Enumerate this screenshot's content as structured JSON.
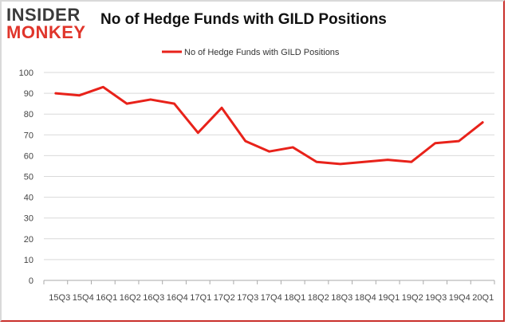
{
  "logo": {
    "line1": "INSIDER",
    "line2": "MONKEY"
  },
  "colors": {
    "series": "#e8221a",
    "grid": "#d9d9d9",
    "axis": "#aaaaaa"
  },
  "chart_data": {
    "type": "line",
    "title": "No of Hedge Funds with GILD Positions",
    "xlabel": "",
    "ylabel": "",
    "ylim": [
      0,
      100
    ],
    "yticks": [
      0,
      10,
      20,
      30,
      40,
      50,
      60,
      70,
      80,
      90,
      100
    ],
    "grid": true,
    "legend_position": "top-center",
    "categories": [
      "15Q3",
      "15Q4",
      "16Q1",
      "16Q2",
      "16Q3",
      "16Q4",
      "17Q1",
      "17Q2",
      "17Q3",
      "17Q4",
      "18Q1",
      "18Q2",
      "18Q3",
      "18Q4",
      "19Q1",
      "19Q2",
      "19Q3",
      "19Q4",
      "20Q1"
    ],
    "series": [
      {
        "name": "No of Hedge Funds with GILD Positions",
        "values": [
          90,
          89,
          93,
          85,
          87,
          85,
          71,
          83,
          67,
          62,
          64,
          57,
          56,
          57,
          58,
          57,
          66,
          67,
          76
        ]
      }
    ]
  }
}
